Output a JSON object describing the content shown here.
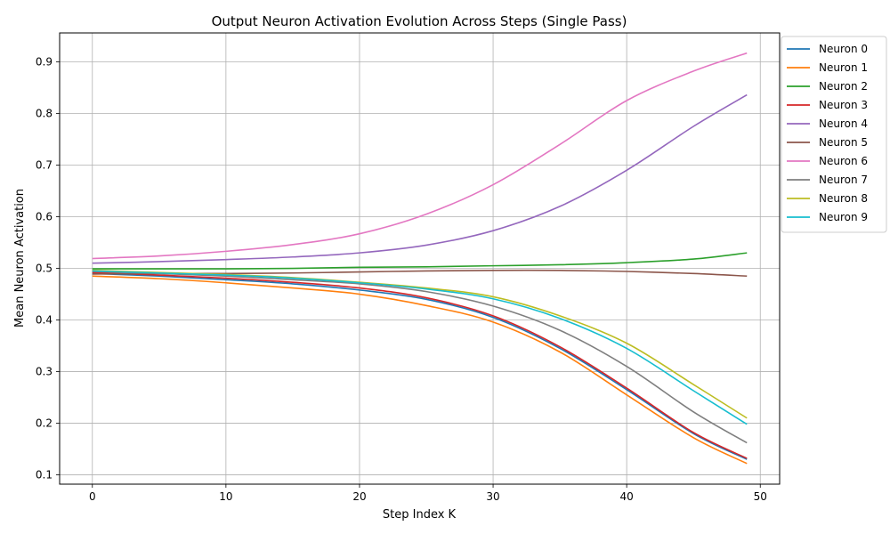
{
  "chart_data": {
    "type": "line",
    "title": "Output Neuron Activation Evolution Across Steps (Single Pass)",
    "xlabel": "Step Index K",
    "ylabel": "Mean Neuron Activation",
    "xlim": [
      -2.45,
      51.45
    ],
    "ylim": [
      0.082,
      0.956
    ],
    "xticks": [
      0,
      10,
      20,
      30,
      40,
      50
    ],
    "yticks": [
      0.1,
      0.2,
      0.3,
      0.4,
      0.5,
      0.6,
      0.7,
      0.8,
      0.9
    ],
    "grid": true,
    "legend_position": "outside-top-right",
    "x": [
      0,
      5,
      10,
      15,
      20,
      25,
      30,
      35,
      40,
      45,
      49
    ],
    "series": [
      {
        "name": "Neuron 0",
        "color": "#1f77b4",
        "values": [
          0.49,
          0.485,
          0.478,
          0.47,
          0.458,
          0.44,
          0.405,
          0.345,
          0.265,
          0.18,
          0.13
        ]
      },
      {
        "name": "Neuron 1",
        "color": "#ff7f0e",
        "values": [
          0.485,
          0.48,
          0.472,
          0.462,
          0.45,
          0.428,
          0.396,
          0.338,
          0.255,
          0.172,
          0.122
        ]
      },
      {
        "name": "Neuron 2",
        "color": "#2ca02c",
        "values": [
          0.499,
          0.499,
          0.499,
          0.5,
          0.502,
          0.503,
          0.505,
          0.507,
          0.511,
          0.518,
          0.53
        ]
      },
      {
        "name": "Neuron 3",
        "color": "#d62728",
        "values": [
          0.492,
          0.487,
          0.481,
          0.473,
          0.462,
          0.443,
          0.408,
          0.348,
          0.268,
          0.182,
          0.132
        ]
      },
      {
        "name": "Neuron 4",
        "color": "#9467bd",
        "values": [
          0.51,
          0.513,
          0.517,
          0.522,
          0.53,
          0.545,
          0.573,
          0.62,
          0.69,
          0.775,
          0.836
        ]
      },
      {
        "name": "Neuron 5",
        "color": "#8c564b",
        "values": [
          0.489,
          0.49,
          0.49,
          0.491,
          0.493,
          0.495,
          0.496,
          0.496,
          0.494,
          0.49,
          0.485
        ]
      },
      {
        "name": "Neuron 6",
        "color": "#e377c2",
        "values": [
          0.519,
          0.524,
          0.533,
          0.546,
          0.567,
          0.605,
          0.662,
          0.74,
          0.825,
          0.882,
          0.917
        ]
      },
      {
        "name": "Neuron 7",
        "color": "#7f7f7f",
        "values": [
          0.494,
          0.49,
          0.485,
          0.478,
          0.47,
          0.455,
          0.427,
          0.38,
          0.31,
          0.222,
          0.162
        ]
      },
      {
        "name": "Neuron 8",
        "color": "#bcbd22",
        "values": [
          0.496,
          0.492,
          0.488,
          0.482,
          0.473,
          0.462,
          0.445,
          0.408,
          0.355,
          0.275,
          0.21
        ]
      },
      {
        "name": "Neuron 9",
        "color": "#17becf",
        "values": [
          0.495,
          0.491,
          0.487,
          0.481,
          0.472,
          0.46,
          0.441,
          0.403,
          0.345,
          0.263,
          0.198
        ]
      }
    ]
  }
}
